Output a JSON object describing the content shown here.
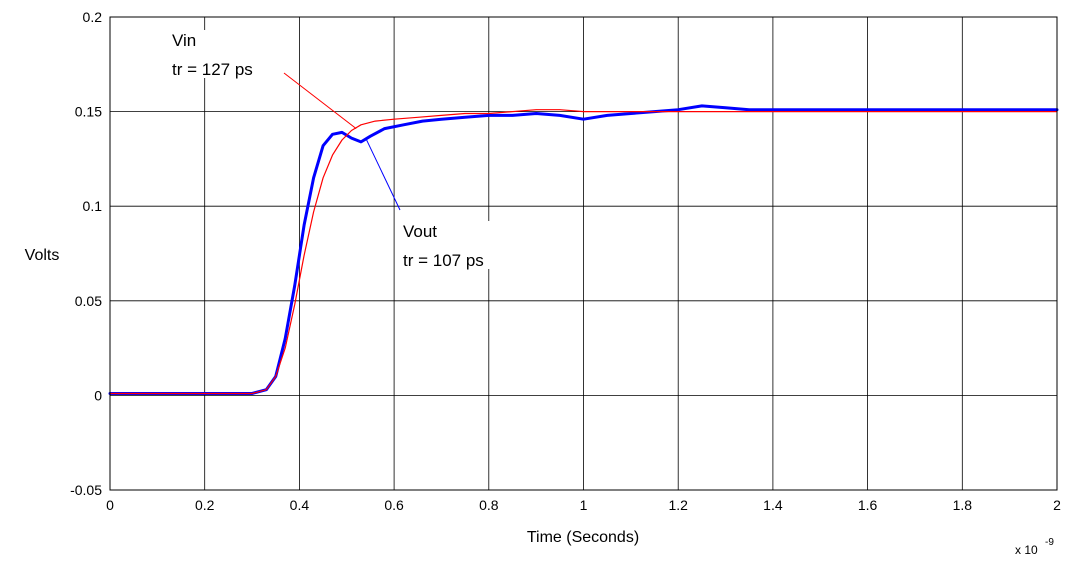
{
  "chart_data": {
    "type": "line",
    "xlabel": "Time (Seconds)",
    "ylabel": "Volts",
    "x_multiplier_base": "x 10",
    "x_multiplier_exp": "-9",
    "xlim": [
      0,
      2
    ],
    "ylim": [
      -0.05,
      0.2
    ],
    "x_ticks": [
      0,
      0.2,
      0.4,
      0.6,
      0.8,
      1,
      1.2,
      1.4,
      1.6,
      1.8,
      2
    ],
    "x_tick_labels": [
      "0",
      "0.2",
      "0.4",
      "0.6",
      "0.8",
      "1",
      "1.2",
      "1.4",
      "1.6",
      "1.8",
      "2"
    ],
    "y_ticks": [
      -0.05,
      0,
      0.05,
      0.1,
      0.15,
      0.2
    ],
    "y_tick_labels": [
      "-0.05",
      "0",
      "0.05",
      "0.1",
      "0.15",
      "0.2"
    ],
    "grid": true,
    "series": [
      {
        "name": "Vin",
        "color": "#ff0000",
        "x": [
          0,
          0.1,
          0.2,
          0.3,
          0.33,
          0.35,
          0.37,
          0.39,
          0.41,
          0.43,
          0.45,
          0.47,
          0.49,
          0.51,
          0.53,
          0.56,
          0.6,
          0.65,
          0.7,
          0.75,
          0.8,
          0.85,
          0.9,
          0.95,
          1.0,
          1.05,
          1.1,
          1.2,
          1.3,
          1.4,
          1.5,
          1.6,
          1.7,
          1.8,
          1.9,
          2.0
        ],
        "y": [
          0.001,
          0.001,
          0.001,
          0.001,
          0.003,
          0.01,
          0.025,
          0.048,
          0.074,
          0.097,
          0.115,
          0.127,
          0.135,
          0.14,
          0.143,
          0.145,
          0.146,
          0.147,
          0.148,
          0.149,
          0.149,
          0.15,
          0.151,
          0.151,
          0.15,
          0.15,
          0.15,
          0.15,
          0.15,
          0.15,
          0.15,
          0.15,
          0.15,
          0.15,
          0.15,
          0.15
        ]
      },
      {
        "name": "Vout",
        "color": "#0000ff",
        "x": [
          0,
          0.1,
          0.2,
          0.3,
          0.33,
          0.35,
          0.37,
          0.39,
          0.41,
          0.43,
          0.45,
          0.47,
          0.49,
          0.51,
          0.53,
          0.55,
          0.58,
          0.62,
          0.66,
          0.7,
          0.75,
          0.8,
          0.85,
          0.9,
          0.95,
          1.0,
          1.05,
          1.1,
          1.15,
          1.2,
          1.25,
          1.3,
          1.35,
          1.4,
          1.5,
          1.6,
          1.7,
          1.8,
          1.9,
          2.0
        ],
        "y": [
          0.001,
          0.001,
          0.001,
          0.001,
          0.003,
          0.01,
          0.03,
          0.058,
          0.09,
          0.115,
          0.132,
          0.138,
          0.139,
          0.136,
          0.134,
          0.137,
          0.141,
          0.143,
          0.145,
          0.146,
          0.147,
          0.148,
          0.148,
          0.149,
          0.148,
          0.146,
          0.148,
          0.149,
          0.15,
          0.151,
          0.153,
          0.152,
          0.151,
          0.151,
          0.151,
          0.151,
          0.151,
          0.151,
          0.151,
          0.151
        ]
      }
    ],
    "annotations": [
      {
        "lines": [
          "Vin",
          "tr = 127 ps"
        ],
        "target_series": "Vin",
        "target": [
          0.52,
          0.141
        ]
      },
      {
        "lines": [
          "Vout",
          "tr = 107 ps"
        ],
        "target_series": "Vout",
        "target": [
          0.54,
          0.136
        ]
      }
    ]
  }
}
